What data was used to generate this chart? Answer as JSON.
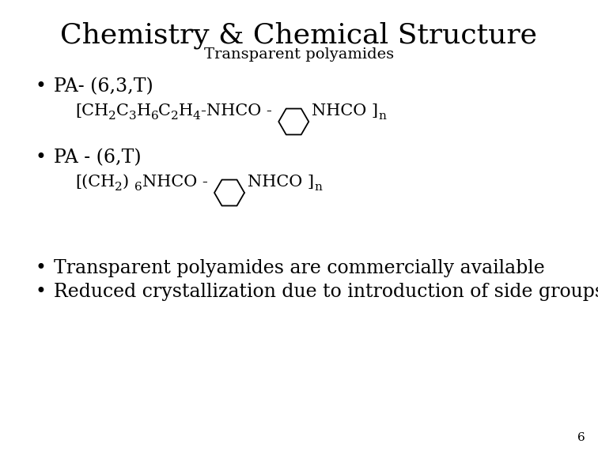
{
  "title": "Chemistry & Chemical Structure",
  "subtitle": "Transparent polyamides",
  "title_fontsize": 26,
  "subtitle_fontsize": 14,
  "bg_color": "#ffffff",
  "text_color": "#000000",
  "bullet1_line1": "PA- (6,3,T)",
  "bullet2_line1": "PA - (6,T)",
  "bullet3": "Transparent polyamides are commercially available",
  "bullet4": "Reduced crystallization due to introduction of side groups",
  "page_number": "6",
  "body_fontsize": 15,
  "formula_fontsize": 15
}
